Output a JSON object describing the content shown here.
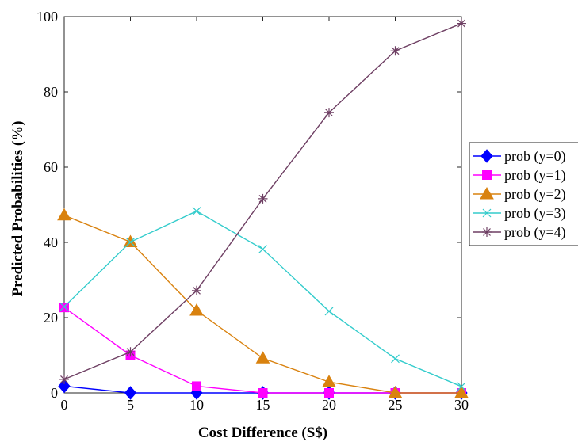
{
  "chart_data": {
    "type": "line",
    "title": "",
    "xlabel": "Cost Difference (S$)",
    "ylabel": "Predicted Probabilities (%)",
    "xlim": [
      0,
      30
    ],
    "ylim": [
      0,
      100
    ],
    "xticks": [
      0,
      5,
      10,
      15,
      20,
      25,
      30
    ],
    "yticks": [
      0,
      20,
      40,
      60,
      80,
      100
    ],
    "grid": false,
    "legend_position": "right",
    "x": [
      0,
      5,
      10,
      15,
      20,
      25,
      30
    ],
    "series": [
      {
        "name": "prob (y=0)",
        "color": "#0000ff",
        "marker": "diamond",
        "values": [
          1.8,
          0,
          0,
          0,
          0,
          0,
          0
        ]
      },
      {
        "name": "prob (y=1)",
        "color": "#ff00ff",
        "marker": "square",
        "values": [
          22.7,
          10.0,
          1.8,
          0,
          0,
          0,
          0
        ]
      },
      {
        "name": "prob (y=2)",
        "color": "#d9820f",
        "marker": "triangle",
        "values": [
          47.2,
          40.1,
          21.9,
          9.2,
          2.9,
          0,
          0
        ]
      },
      {
        "name": "prob (y=3)",
        "color": "#33cccc",
        "marker": "x",
        "values": [
          22.9,
          40.1,
          48.3,
          38.2,
          21.7,
          9.1,
          1.7
        ]
      },
      {
        "name": "prob (y=4)",
        "color": "#6e3f63",
        "marker": "star",
        "values": [
          3.6,
          10.9,
          27.2,
          51.6,
          74.5,
          90.9,
          98.2
        ]
      }
    ]
  }
}
